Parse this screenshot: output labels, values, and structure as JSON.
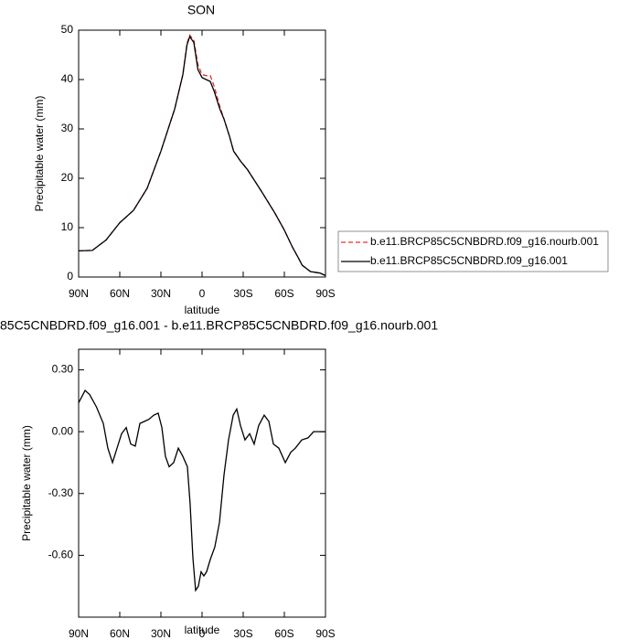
{
  "chart_data": [
    {
      "type": "line",
      "title": "SON",
      "x_label": "latitude",
      "y_label": "Precipitable water (mm)",
      "x": [
        90,
        80,
        70,
        60,
        50,
        40,
        30,
        20,
        14,
        11,
        9,
        6,
        3,
        0,
        -3,
        -6,
        -9,
        -13,
        -16,
        -20,
        -23,
        -28,
        -33,
        -43,
        -53,
        -60,
        -66,
        -70,
        -73,
        -79,
        -86,
        -90
      ],
      "series": [
        {
          "name": "b.e11.BRCP85C5CNBDRD.f09_g16.nourb.001",
          "color": "#e03030",
          "dashed": true,
          "values": [
            5.3,
            5.4,
            7.5,
            11,
            13.5,
            18,
            25.5,
            34,
            41,
            47.3,
            49,
            48,
            43,
            41,
            40.8,
            40.8,
            38.5,
            34.5,
            32,
            28.5,
            25.5,
            23.5,
            21.8,
            17.5,
            13,
            9.5,
            6,
            4,
            2.4,
            1.1,
            0.8,
            0.3
          ]
        },
        {
          "name": "b.e11.BRCP85C5CNBDRD.f09_g16.001",
          "color": "#000000",
          "dashed": false,
          "values": [
            5.3,
            5.4,
            7.5,
            11,
            13.5,
            18,
            25.5,
            34,
            41,
            47,
            48.7,
            47.5,
            42,
            40.4,
            40,
            39.6,
            37.5,
            34,
            32,
            28.5,
            25.5,
            23.5,
            21.8,
            17.5,
            13,
            9.5,
            6,
            4,
            2.4,
            1.1,
            0.8,
            0.3
          ]
        }
      ],
      "xlim": [
        90,
        -90
      ],
      "xticks": [
        {
          "value": 90,
          "label": "90N"
        },
        {
          "value": 60,
          "label": "60N"
        },
        {
          "value": 30,
          "label": "30N"
        },
        0,
        {
          "value": -30,
          "label": "30S"
        },
        {
          "value": -60,
          "label": "60S"
        },
        {
          "value": -90,
          "label": "90S"
        }
      ],
      "ylim": [
        0,
        50
      ],
      "yticks": [
        0,
        10,
        20,
        30,
        40,
        50
      ],
      "legend": "right"
    },
    {
      "type": "line",
      "title": "85C5CNBDRD.f09_g16.001 - b.e11.BRCP85C5CNBDRD.f09_g16.nourb.001",
      "x_label": "latitude",
      "y_label": "Precipitable water (mm)",
      "x": [
        90,
        85.3,
        82,
        77,
        72,
        68.7,
        65.3,
        62,
        58.7,
        55.3,
        52,
        48.7,
        45.3,
        42,
        38.7,
        35.3,
        32,
        29.3,
        26.7,
        24,
        20.7,
        17.3,
        14,
        10.7,
        8.7,
        6.7,
        4.7,
        2.7,
        0.7,
        -1.3,
        -3.3,
        -6,
        -9.3,
        -12.7,
        -16,
        -19.3,
        -22.7,
        -25.3,
        -28,
        -31.3,
        -34.7,
        -38,
        -41.3,
        -45.3,
        -48.7,
        -52,
        -56,
        -60.7,
        -64.7,
        -68,
        -72.7,
        -77.3,
        -81.3,
        -90
      ],
      "series": [
        {
          "color": "#000000",
          "dashed": false,
          "values": [
            0.14,
            0.2,
            0.18,
            0.12,
            0.04,
            -0.08,
            -0.15,
            -0.08,
            -0.01,
            0.02,
            -0.06,
            -0.07,
            0.04,
            0.05,
            0.06,
            0.08,
            0.09,
            0.02,
            -0.12,
            -0.17,
            -0.15,
            -0.08,
            -0.12,
            -0.17,
            -0.35,
            -0.61,
            -0.77,
            -0.75,
            -0.68,
            -0.7,
            -0.68,
            -0.62,
            -0.56,
            -0.44,
            -0.21,
            -0.04,
            0.08,
            0.11,
            0.03,
            -0.04,
            -0.01,
            -0.06,
            0.03,
            0.08,
            0.05,
            -0.06,
            -0.08,
            -0.15,
            -0.1,
            -0.08,
            -0.04,
            -0.03,
            0,
            0
          ]
        }
      ],
      "xlim": [
        90,
        -90
      ],
      "xticks": [
        {
          "value": 90,
          "label": "90N"
        },
        {
          "value": 60,
          "label": "60N"
        },
        {
          "value": 30,
          "label": "30N"
        },
        0,
        {
          "value": -30,
          "label": "30S"
        },
        {
          "value": -60,
          "label": "60S"
        },
        {
          "value": -90,
          "label": "90S"
        }
      ],
      "ylim": [
        -0.9,
        0.4
      ],
      "yticks": [
        {
          "value": 0.3,
          "label": "0.30"
        },
        {
          "value": 0,
          "label": "0.00"
        },
        {
          "value": -0.3,
          "label": "-0.30"
        },
        {
          "value": -0.6,
          "label": "-0.60"
        }
      ]
    }
  ]
}
